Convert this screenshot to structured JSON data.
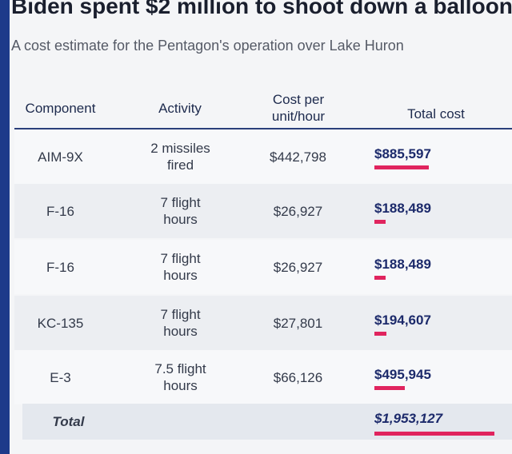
{
  "header": {
    "title": "Biden spent $2 million to shoot down a balloon",
    "subtitle": "A cost estimate for the Pentagon's operation over Lake Huron"
  },
  "table": {
    "columns": [
      "Component",
      "Activity",
      "Cost per unit/hour",
      "Total cost"
    ],
    "rows": [
      {
        "component": "AIM-9X",
        "activity": "2 missiles fired",
        "cost_per_unit": "$442,798",
        "total_cost": {
          "value": 885597,
          "label": "$885,597"
        }
      },
      {
        "component": "F-16",
        "activity": "7 flight hours",
        "cost_per_unit": "$26,927",
        "total_cost": {
          "value": 188489,
          "label": "$188,489"
        }
      },
      {
        "component": "F-16",
        "activity": "7 flight hours",
        "cost_per_unit": "$26,927",
        "total_cost": {
          "value": 188489,
          "label": "$188,489"
        }
      },
      {
        "component": "KC-135",
        "activity": "7 flight hours",
        "cost_per_unit": "$27,801",
        "total_cost": {
          "value": 194607,
          "label": "$194,607"
        }
      },
      {
        "component": "E-3",
        "activity": "7.5 flight hours",
        "cost_per_unit": "$66,126",
        "total_cost": {
          "value": 495945,
          "label": "$495,945"
        }
      }
    ],
    "total": {
      "label": "Total",
      "total_cost": {
        "value": 1953127,
        "label": "$1,953,127"
      }
    }
  }
}
